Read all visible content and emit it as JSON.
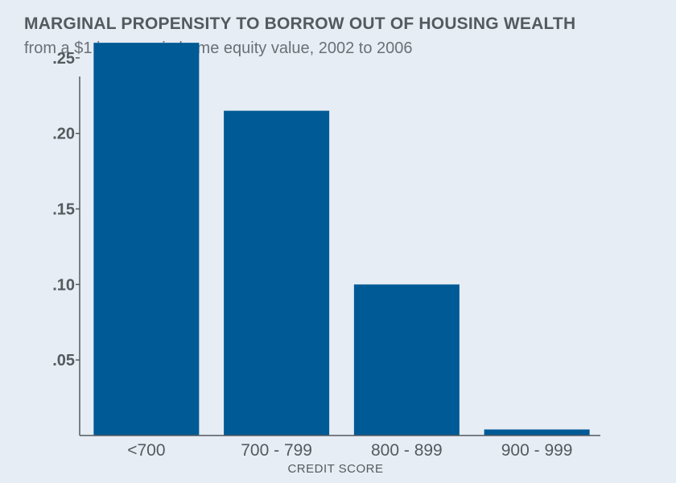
{
  "chart_data": {
    "type": "bar",
    "title": "MARGINAL PROPENSITY TO BORROW OUT OF HOUSING WEALTH",
    "subtitle": "from a $1 increase in home equity value, 2002 to 2006",
    "xlabel": "CREDIT SCORE",
    "ylabel": "",
    "categories": [
      "<700",
      "700 - 799",
      "800 - 899",
      "900 - 999"
    ],
    "values": [
      0.26,
      0.215,
      0.1,
      0.004
    ],
    "ylim": [
      0,
      0.275
    ],
    "yticks": [
      0.05,
      0.1,
      0.15,
      0.2,
      0.25
    ],
    "ytick_labels": [
      ".05",
      ".10",
      ".15",
      ".20",
      ".25"
    ],
    "bar_color": "#005a96",
    "grid": false,
    "legend": "none"
  }
}
